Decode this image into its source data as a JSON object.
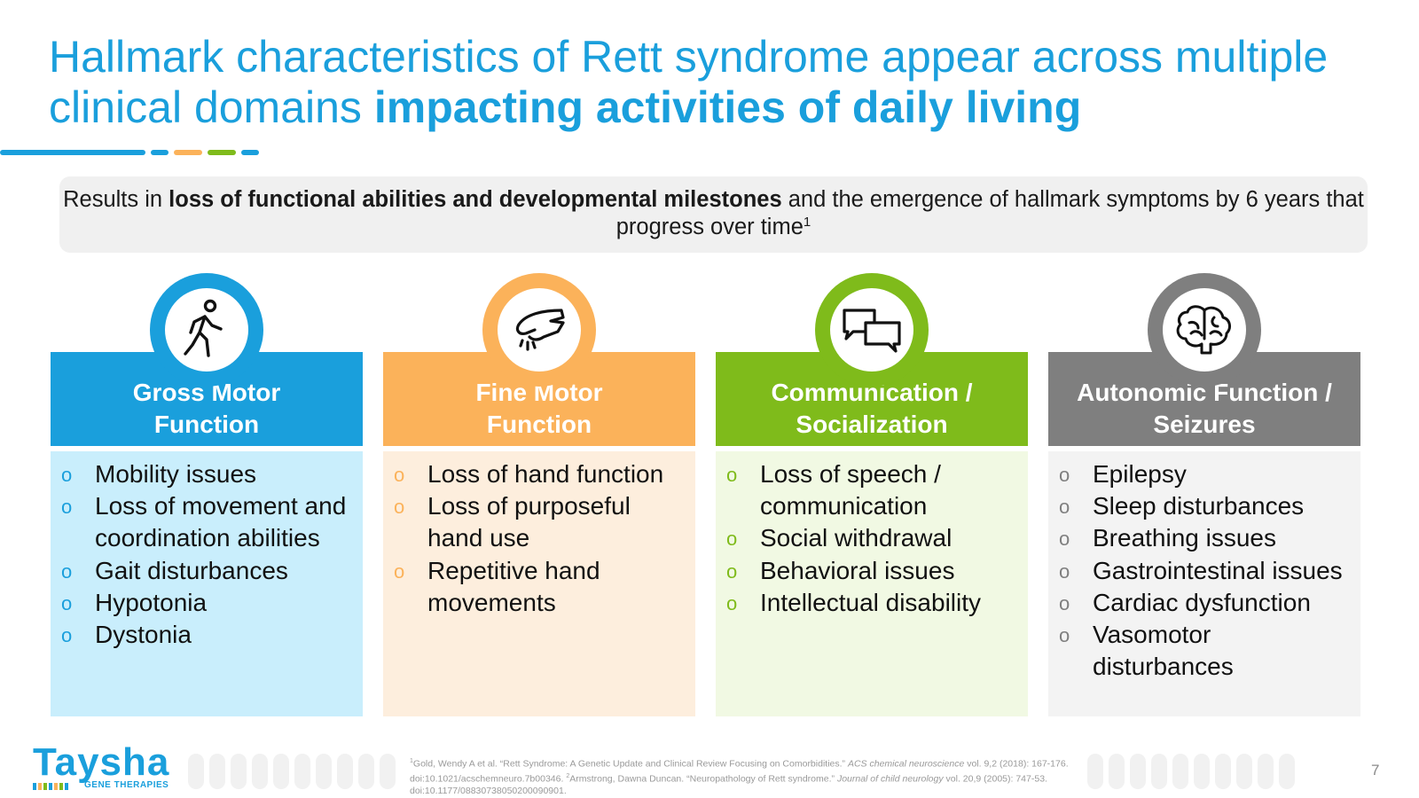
{
  "title": {
    "part1": "Hallmark characteristics of Rett syndrome appear across multiple clinical domains",
    "part2": "impacting activities of daily living"
  },
  "banner": {
    "prefix": "Results in",
    "bold": "loss of functional abilities and developmental milestones",
    "suffix": "and the emergence of hallmark symptoms by 6 years that progress over time",
    "sup": "1"
  },
  "columns": [
    {
      "icon": "walking-person-icon",
      "color": "#1a9fdc",
      "bg": "#c9eefc",
      "title_line1": "Gross Motor",
      "title_line2": "Function",
      "bullet": "o",
      "items": [
        "Mobility issues",
        "Loss of movement and coordination abilities",
        "Gait disturbances",
        "Hypotonia",
        "Dystonia"
      ]
    },
    {
      "icon": "hand-icon",
      "color": "#fbb25a",
      "bg": "#fdeedd",
      "title_line1": "Fine Motor",
      "title_line2": "Function",
      "bullet": "o",
      "items": [
        "Loss of hand function",
        "Loss of purposeful hand use",
        "Repetitive hand movements"
      ]
    },
    {
      "icon": "speech-bubbles-icon",
      "color": "#7fbb1b",
      "bg": "#f1f9e3",
      "title_line1": "Communication /",
      "title_line2": "Socialization",
      "bullet": "o",
      "items": [
        "Loss of speech / communication",
        "Social withdrawal",
        "Behavioral issues",
        "Intellectual disability"
      ]
    },
    {
      "icon": "brain-icon",
      "color": "#7f7f7f",
      "bg": "#f3f3f3",
      "title_line1": "Autonomic Function /",
      "title_line2": "Seizures",
      "bullet": "o",
      "items": [
        "Epilepsy",
        "Sleep disturbances",
        "Breathing issues",
        "Gastrointestinal issues",
        "Cardiac dysfunction",
        "Vasomotor disturbances"
      ]
    }
  ],
  "logo": {
    "name": "Taysha",
    "sub": "GENE THERAPIES"
  },
  "references": {
    "r1_sup": "1",
    "r1_text": "Gold, Wendy A et al. “Rett Syndrome: A Genetic Update and Clinical Review Focusing on Comorbidities.”",
    "r1_journal": "ACS chemical neuroscience",
    "r1_tail": "vol. 9,2 (2018): 167-176. doi:10.1021/acschemneuro.7b00346.",
    "r2_sup": "2",
    "r2_text": "Armstrong, Dawna Duncan. “Neuropathology of Rett syndrome.”",
    "r2_journal": "Journal of child neurology",
    "r2_tail": "vol. 20,9 (2005): 747-53. doi:10.1177/08830738050200090901."
  },
  "page_number": "7",
  "colors": {
    "accent_blue": "#1a9fdc",
    "accent_orange": "#fbb25a",
    "accent_green": "#7fbb1b",
    "accent_gray": "#7f7f7f"
  }
}
